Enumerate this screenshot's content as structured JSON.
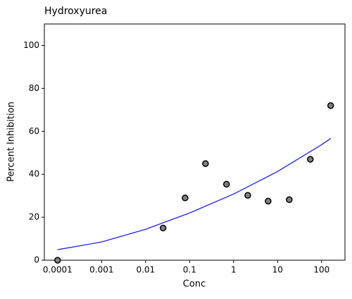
{
  "chart_data": {
    "type": "scatter",
    "title": "Hydroxyurea",
    "x_label": "Conc",
    "y_label": "Percent Inhibition",
    "xscale": "log",
    "xlim": [
      5e-05,
      340
    ],
    "ylim": [
      0,
      110
    ],
    "xticks": [
      0.0001,
      0.001,
      0.01,
      0.1,
      1,
      10,
      100
    ],
    "yticks": [
      0,
      20,
      40,
      60,
      80,
      100
    ],
    "points": {
      "color": "#808080",
      "x": [
        0.0001,
        0.025,
        0.079,
        0.23,
        0.69,
        2.1,
        6.1,
        18.4,
        55.5,
        161
      ],
      "values": [
        0,
        15,
        29,
        45,
        35.4,
        30.2,
        27.5,
        28.2,
        47,
        72
      ]
    },
    "fit": {
      "color": "#1f1fff",
      "x": [
        0.0001,
        0.001,
        0.01,
        0.1,
        1,
        10,
        100,
        161
      ],
      "values": [
        4.9,
        8.5,
        14.4,
        22,
        30.8,
        41.3,
        53.8,
        56.7
      ]
    }
  }
}
